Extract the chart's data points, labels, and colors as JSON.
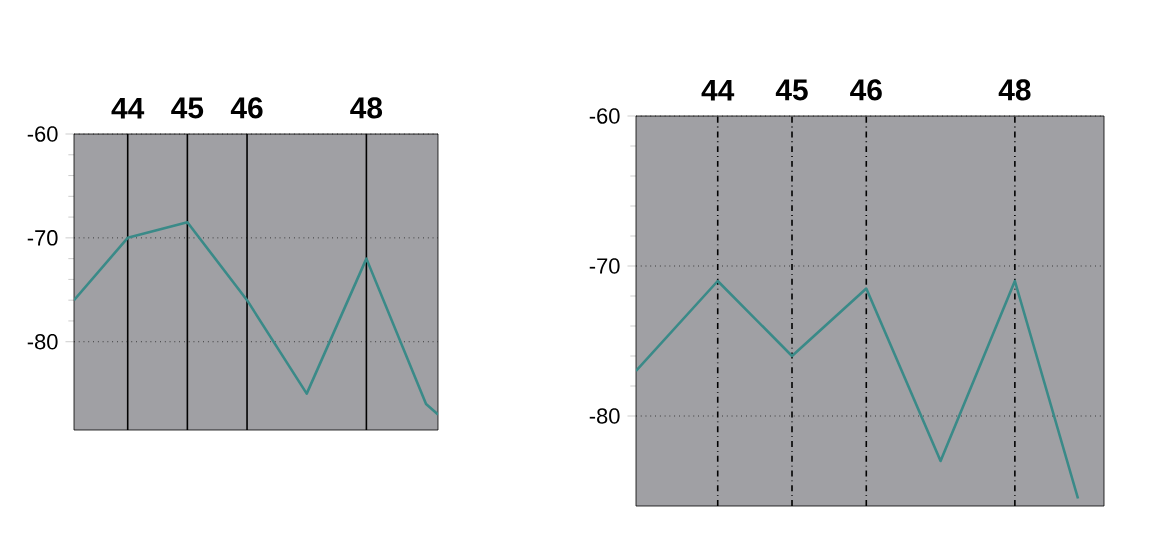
{
  "chart_data": [
    {
      "type": "line",
      "x": [
        43.1,
        44,
        45,
        46,
        47,
        48,
        49,
        49.2
      ],
      "series": [
        {
          "color": "#3a8a88",
          "values": [
            -76,
            -70,
            -68.5,
            -76,
            -85,
            -72,
            -86,
            -87
          ]
        }
      ],
      "xlim": [
        43.1,
        49.2
      ],
      "ylim": [
        -88.5,
        -60
      ],
      "xticks": [
        44,
        45,
        46,
        48
      ],
      "yticks": [
        -60,
        -70,
        -80
      ],
      "grid": "y",
      "ref_lines": [
        {
          "axis": "x",
          "value": 44,
          "color": "#000000",
          "line_style": "solid"
        },
        {
          "axis": "x",
          "value": 45,
          "color": "#000000",
          "line_style": "solid"
        },
        {
          "axis": "x",
          "value": 46,
          "color": "#000000",
          "line_style": "solid"
        },
        {
          "axis": "x",
          "value": 48,
          "color": "#000000",
          "line_style": "solid"
        }
      ]
    },
    {
      "type": "line",
      "x": [
        42.9,
        44,
        45,
        46,
        47,
        48,
        48.85
      ],
      "series": [
        {
          "color": "#3a8a88",
          "values": [
            -77,
            -71,
            -76,
            -71.5,
            -83,
            -71,
            -85.5
          ]
        }
      ],
      "xlim": [
        42.9,
        49.2
      ],
      "ylim": [
        -86,
        -60
      ],
      "xticks": [
        44,
        45,
        46,
        48
      ],
      "yticks": [
        -60,
        -70,
        -80
      ],
      "grid": "y",
      "ref_lines": [
        {
          "axis": "x",
          "value": 44,
          "color": "#000000",
          "line_style": "dashed"
        },
        {
          "axis": "x",
          "value": 45,
          "color": "#000000",
          "line_style": "dashed"
        },
        {
          "axis": "x",
          "value": 46,
          "color": "#000000",
          "line_style": "dashed"
        },
        {
          "axis": "x",
          "value": 48,
          "color": "#000000",
          "line_style": "dashed"
        }
      ]
    }
  ]
}
